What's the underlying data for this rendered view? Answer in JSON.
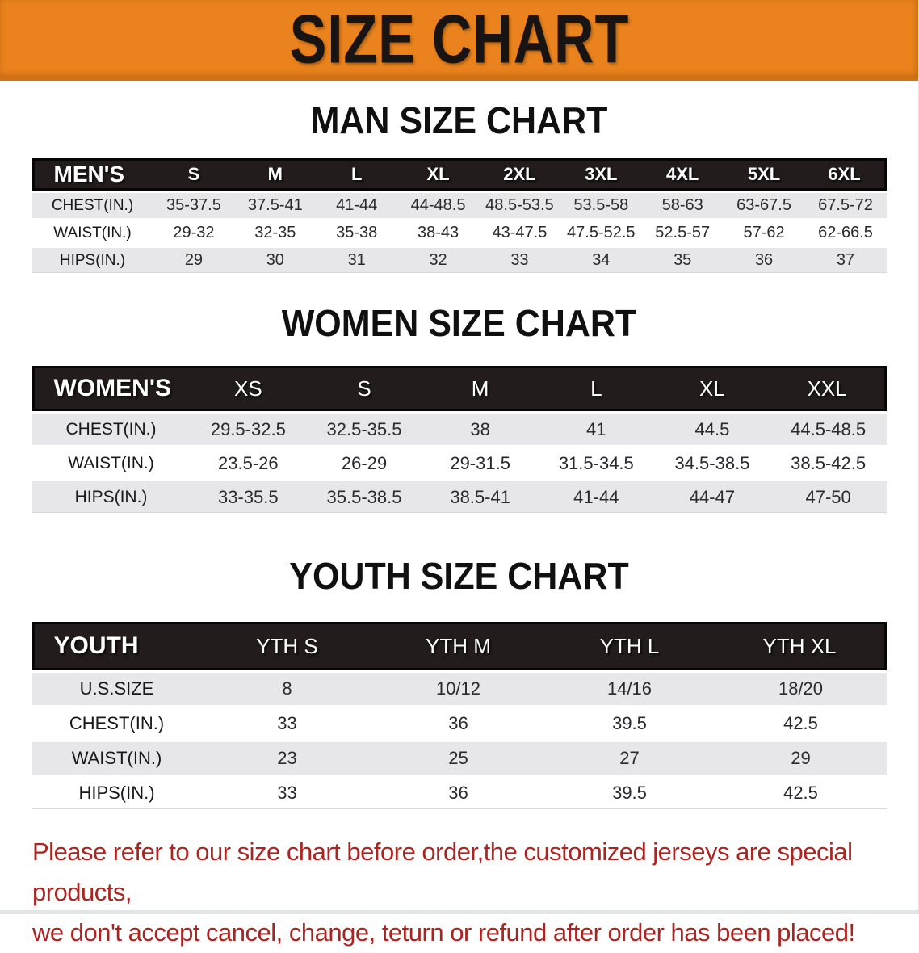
{
  "banner": {
    "title": "SIZE CHART"
  },
  "colors": {
    "banner_bg": "#EA831D",
    "header_bg": "#221C1D",
    "row_alt": "#E7E7E9",
    "note_red": "#AC2420"
  },
  "men": {
    "heading": "MAN SIZE CHART",
    "table": {
      "header": [
        "MEN'S",
        "S",
        "M",
        "L",
        "XL",
        "2XL",
        "3XL",
        "4XL",
        "5XL",
        "6XL"
      ],
      "rows": [
        [
          "CHEST(IN.)",
          "35-37.5",
          "37.5-41",
          "41-44",
          "44-48.5",
          "48.5-53.5",
          "53.5-58",
          "58-63",
          "63-67.5",
          "67.5-72"
        ],
        [
          "WAIST(IN.)",
          "29-32",
          "32-35",
          "35-38",
          "38-43",
          "43-47.5",
          "47.5-52.5",
          "52.5-57",
          "57-62",
          "62-66.5"
        ],
        [
          "HIPS(IN.)",
          "29",
          "30",
          "31",
          "32",
          "33",
          "34",
          "35",
          "36",
          "37"
        ]
      ]
    }
  },
  "women": {
    "heading": "WOMEN SIZE CHART",
    "table": {
      "header": [
        "WOMEN'S",
        "XS",
        "S",
        "M",
        "L",
        "XL",
        "XXL"
      ],
      "rows": [
        [
          "CHEST(IN.)",
          "29.5-32.5",
          "32.5-35.5",
          "38",
          "41",
          "44.5",
          "44.5-48.5"
        ],
        [
          "WAIST(IN.)",
          "23.5-26",
          "26-29",
          "29-31.5",
          "31.5-34.5",
          "34.5-38.5",
          "38.5-42.5"
        ],
        [
          "HIPS(IN.)",
          "33-35.5",
          "35.5-38.5",
          "38.5-41",
          "41-44",
          "44-47",
          "47-50"
        ]
      ]
    }
  },
  "youth": {
    "heading": "YOUTH SIZE CHART",
    "table": {
      "header": [
        "YOUTH",
        "YTH S",
        "YTH M",
        "YTH L",
        "YTH XL"
      ],
      "rows": [
        [
          "U.S.SIZE",
          "8",
          "10/12",
          "14/16",
          "18/20"
        ],
        [
          "CHEST(IN.)",
          "33",
          "36",
          "39.5",
          "42.5"
        ],
        [
          "WAIST(IN.)",
          "23",
          "25",
          "27",
          "29"
        ],
        [
          "HIPS(IN.)",
          "33",
          "36",
          "39.5",
          "42.5"
        ]
      ]
    }
  },
  "note": {
    "line1": "Please refer to our size chart before order,the customized jerseys are special products,",
    "line2": "we don't accept cancel, change, teturn or refund after order has been placed!"
  }
}
